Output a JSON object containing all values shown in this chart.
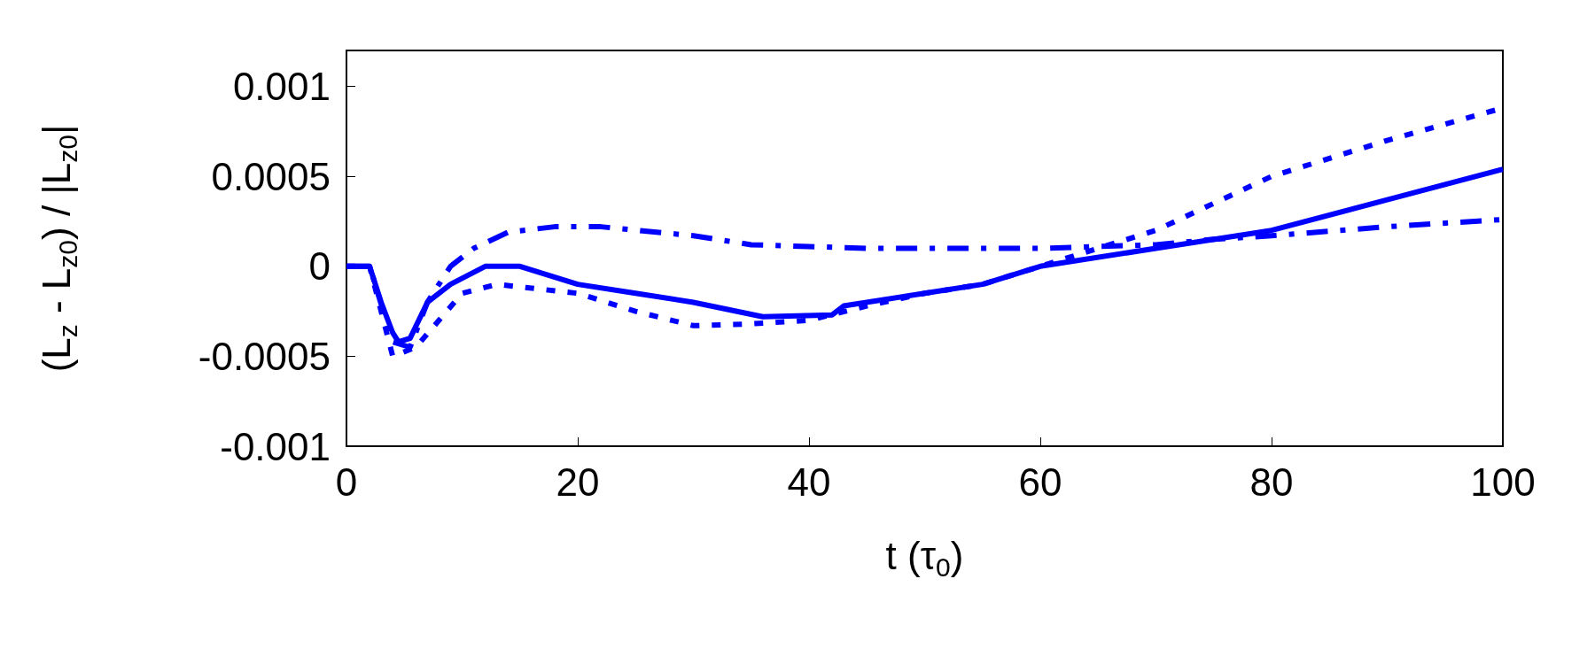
{
  "chart_data": {
    "type": "line",
    "xlabel": "t (τ$_{0}$)",
    "ylabel": "(L$_{z}$ - L$_{z0}$) / |L$_{z0}$|",
    "xlim": [
      0,
      100
    ],
    "xticks": [
      0,
      20,
      40,
      60,
      80,
      100
    ],
    "ylim": [
      -0.001,
      0.0012
    ],
    "yticks": [
      -0.001,
      -0.0005,
      0,
      0.0005,
      0.001
    ],
    "grid": false,
    "marker": "none",
    "series": [
      {
        "color": "#0000ff",
        "line_style": "solid",
        "x": [
          0,
          1,
          2,
          3,
          4,
          4.5,
          5.5,
          7,
          9,
          12,
          15,
          20,
          25,
          30,
          36,
          42,
          43,
          50,
          55,
          60,
          70,
          80,
          90,
          100
        ],
        "values": [
          0,
          0,
          0,
          -0.0002,
          -0.00037,
          -0.00042,
          -0.0004,
          -0.0002,
          -0.0001,
          0,
          0,
          -0.0001,
          -0.00015,
          -0.0002,
          -0.00028,
          -0.00027,
          -0.00022,
          -0.00015,
          -0.0001,
          0,
          0.0001,
          0.0002,
          0.00037,
          0.00054
        ]
      },
      {
        "color": "#0000ff",
        "line_style": "dashed",
        "x": [
          0,
          2,
          4,
          5.5,
          7,
          9,
          11,
          14,
          18,
          22,
          30,
          35,
          40,
          45,
          55,
          60,
          70,
          75,
          80,
          90,
          100
        ],
        "values": [
          0,
          0,
          -0.00042,
          -0.00045,
          -0.0002,
          0,
          0.0001,
          0.00019,
          0.00022,
          0.00022,
          0.00017,
          0.00012,
          0.00011,
          0.0001,
          0.0001,
          0.0001,
          0.00012,
          0.00015,
          0.00017,
          0.00022,
          0.00026
        ]
      },
      {
        "color": "#0000ff",
        "line_style": "dotted",
        "x": [
          0,
          2,
          4,
          6,
          8,
          10,
          13,
          20,
          25,
          30,
          35,
          40,
          45,
          50,
          55,
          60,
          65,
          70,
          75,
          80,
          90,
          100
        ],
        "values": [
          0,
          0,
          -0.0005,
          -0.00045,
          -0.0003,
          -0.00015,
          -0.0001,
          -0.00015,
          -0.00025,
          -0.00033,
          -0.00032,
          -0.0003,
          -0.00022,
          -0.00015,
          -0.0001,
          0,
          0.0001,
          0.0002,
          0.00035,
          0.0005,
          0.0007,
          0.00088
        ]
      }
    ]
  }
}
